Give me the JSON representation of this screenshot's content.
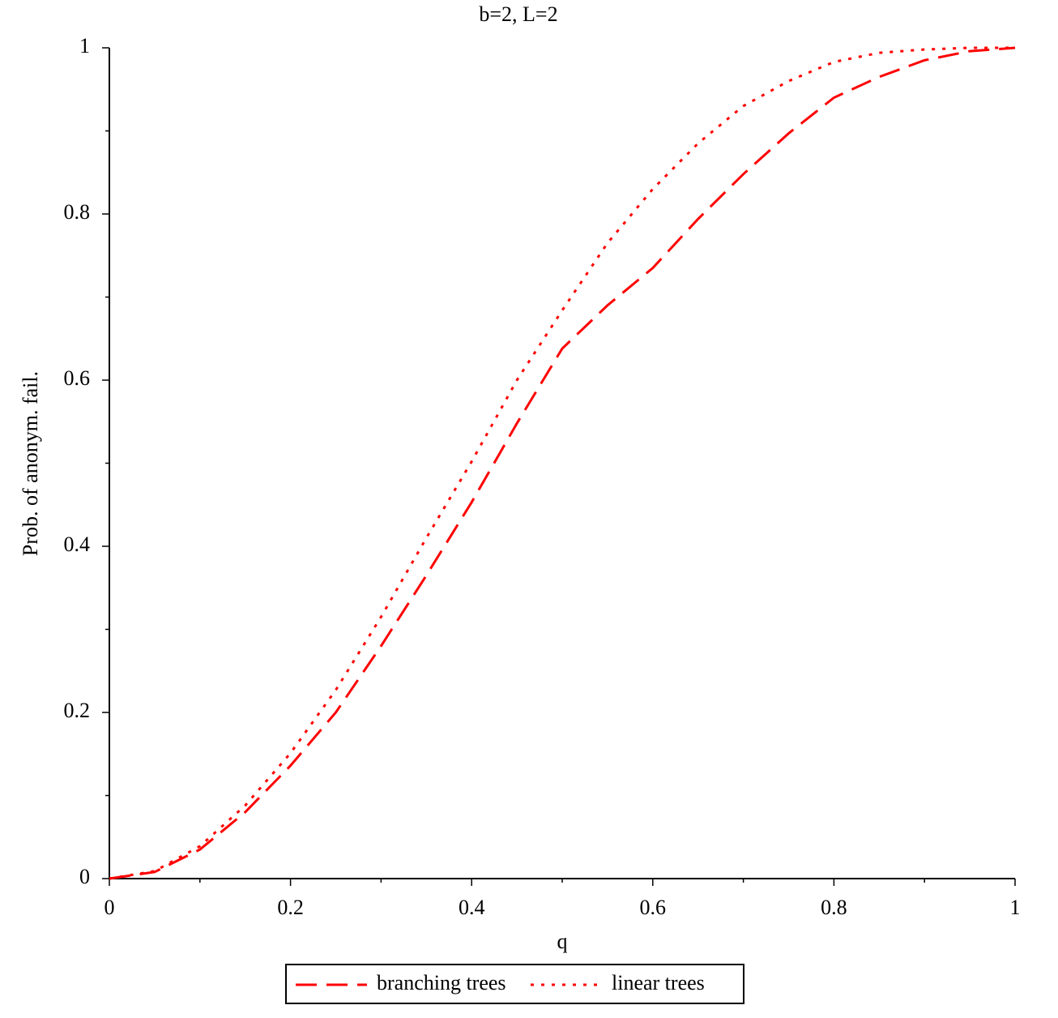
{
  "chart_data": {
    "type": "line",
    "title": "b=2, L=2",
    "x_label": "q",
    "y_label": "Prob. of anonym. fail.",
    "x": [
      0,
      0.05,
      0.1,
      0.15,
      0.2,
      0.25,
      0.3,
      0.35,
      0.4,
      0.45,
      0.5,
      0.55,
      0.6,
      0.65,
      0.7,
      0.75,
      0.8,
      0.85,
      0.9,
      0.95,
      1
    ],
    "series": [
      {
        "name": "branching trees",
        "color": "#ff0000",
        "dash": "dashed",
        "values": [
          0,
          0.008,
          0.035,
          0.08,
          0.136,
          0.2,
          0.28,
          0.365,
          0.453,
          0.548,
          0.638,
          0.69,
          0.735,
          0.794,
          0.848,
          0.897,
          0.94,
          0.965,
          0.985,
          0.996,
          1
        ]
      },
      {
        "name": "linear trees",
        "color": "#ff0000",
        "dash": "dotted",
        "values": [
          0,
          0.009,
          0.039,
          0.088,
          0.151,
          0.227,
          0.315,
          0.41,
          0.502,
          0.6,
          0.684,
          0.765,
          0.83,
          0.885,
          0.93,
          0.96,
          0.983,
          0.994,
          0.998,
          1,
          1
        ]
      }
    ],
    "xlim": [
      0,
      1
    ],
    "ylim": [
      0,
      1
    ],
    "xticks": [
      0,
      0.2,
      0.4,
      0.6,
      0.8,
      1
    ],
    "yticks": [
      0,
      0.2,
      0.4,
      0.6,
      0.8,
      1
    ],
    "xminorticks": [
      0.1,
      0.3,
      0.5,
      0.7,
      0.9
    ],
    "yminorticks": [
      0.1,
      0.3,
      0.5,
      0.7,
      0.9
    ],
    "legend": "bottom"
  }
}
